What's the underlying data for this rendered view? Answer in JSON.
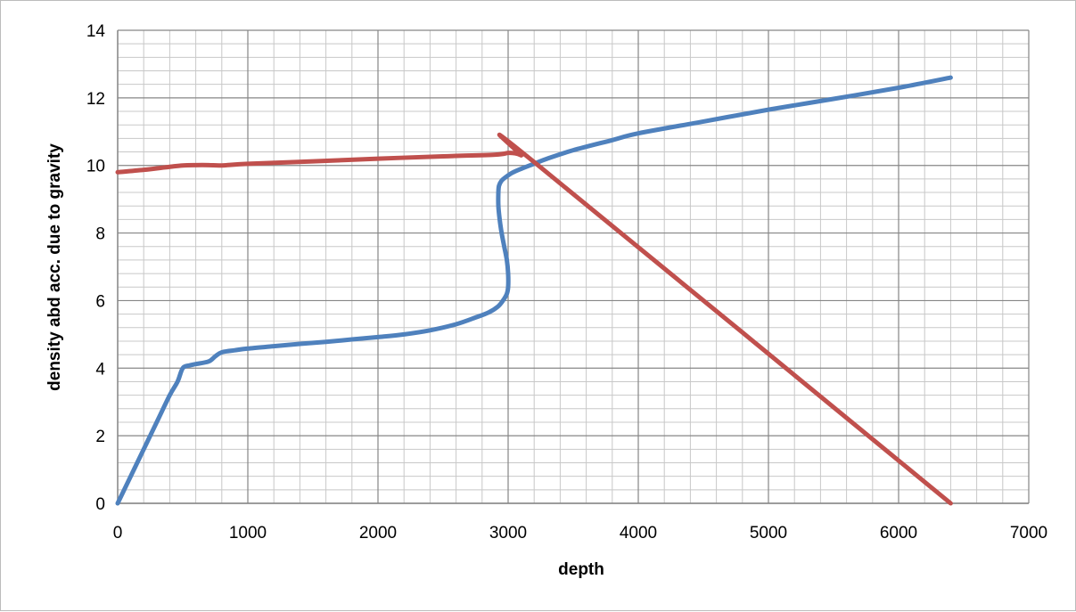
{
  "chart_data": {
    "type": "line",
    "title": "",
    "xlabel": "depth",
    "ylabel": "density abd acc. due to gravity",
    "xlim": [
      0,
      7000
    ],
    "ylim": [
      0,
      14
    ],
    "x_major_step": 1000,
    "x_minor_step": 200,
    "y_major_step": 2,
    "y_minor_step": 0.4,
    "x_ticks": [
      "0",
      "1000",
      "2000",
      "3000",
      "4000",
      "5000",
      "6000",
      "7000"
    ],
    "y_ticks": [
      "0",
      "2",
      "4",
      "6",
      "8",
      "10",
      "12",
      "14"
    ],
    "grid": true,
    "legend": "none",
    "series": [
      {
        "color": "#4f81bd",
        "x": [
          0,
          100,
          200,
          300,
          400,
          460,
          500,
          550,
          600,
          700,
          750,
          800,
          900,
          1000,
          1200,
          1400,
          1600,
          1800,
          2000,
          2200,
          2400,
          2600,
          2750,
          2850,
          2920,
          2960,
          2990,
          3000,
          3000,
          2990,
          2970,
          2950,
          2935,
          2925,
          2925,
          2930,
          2950,
          2980,
          3030,
          3100,
          3200,
          3300,
          3500,
          3800,
          4000,
          4500,
          5000,
          5500,
          6000,
          6400
        ],
        "y": [
          0,
          0.8,
          1.6,
          2.4,
          3.2,
          3.6,
          4.0,
          4.08,
          4.12,
          4.2,
          4.35,
          4.47,
          4.53,
          4.58,
          4.65,
          4.72,
          4.78,
          4.85,
          4.92,
          5.0,
          5.12,
          5.3,
          5.5,
          5.65,
          5.82,
          6.0,
          6.2,
          6.4,
          6.8,
          7.2,
          7.6,
          8.0,
          8.4,
          8.8,
          9.2,
          9.4,
          9.55,
          9.65,
          9.78,
          9.9,
          10.05,
          10.2,
          10.45,
          10.75,
          10.95,
          11.3,
          11.65,
          11.97,
          12.3,
          12.6
        ]
      },
      {
        "color": "#c0504d",
        "x": [
          0,
          200,
          400,
          500,
          600,
          700,
          800,
          1000,
          1500,
          2000,
          2500,
          2900,
          3000,
          3050,
          3100,
          3200,
          6400
        ],
        "y": [
          9.8,
          9.87,
          9.96,
          10.0,
          10.01,
          10.01,
          10.0,
          10.05,
          10.12,
          10.2,
          10.27,
          10.32,
          10.37,
          10.36,
          10.3,
          10.1,
          0
        ]
      }
    ]
  }
}
